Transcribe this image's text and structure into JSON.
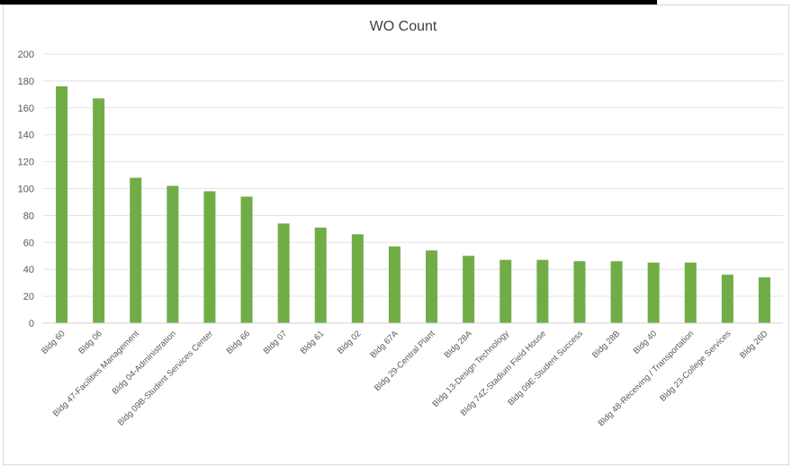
{
  "chart_data": {
    "type": "bar",
    "title": "WO Count",
    "xlabel": "",
    "ylabel": "",
    "ylim": [
      0,
      200
    ],
    "yticks": [
      0,
      20,
      40,
      60,
      80,
      100,
      120,
      140,
      160,
      180,
      200
    ],
    "grid": true,
    "legend": "none",
    "bar_color": "#70ad47",
    "categories": [
      "Bldg 60",
      "Bldg 06",
      "Bldg 47-Facilities Management",
      "Bldg 04-Administration",
      "Bldg 09B-Student Services Center",
      "Bldg 66",
      "Bldg 07",
      "Bldg 61",
      "Bldg 02",
      "Bldg 67A",
      "Bldg 29-Central Plant",
      "Bldg 28A",
      "Bldg 13-Design Technology",
      "Bldg 74Z-Stadium Field House",
      "Bldg 09E-Student Success",
      "Bldg 28B",
      "Bldg 40",
      "Bldg 48-Receiving / Transportation",
      "Bldg 23-College Services",
      "Bldg 26D"
    ],
    "values": [
      176,
      167,
      108,
      102,
      98,
      94,
      74,
      71,
      66,
      57,
      54,
      50,
      47,
      47,
      46,
      46,
      45,
      45,
      36,
      34
    ]
  }
}
